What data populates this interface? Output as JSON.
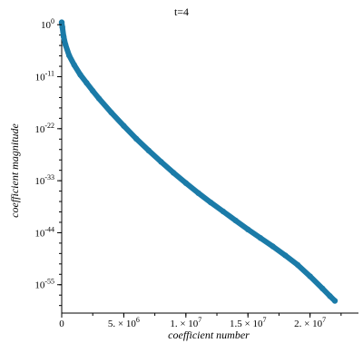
{
  "chart_data": {
    "type": "scatter",
    "title": "t=4",
    "xlabel": "coefficient number",
    "ylabel": "coefficient magnitude",
    "x_scale": "linear",
    "y_scale": "log10",
    "xlim": [
      0,
      23900000
    ],
    "ylim_log10_exponent": [
      -61,
      1
    ],
    "x_ticks": [
      {
        "value": 0,
        "label": "0",
        "mantissa": "",
        "exp": ""
      },
      {
        "value": 5000000,
        "label": "5. × 10^6",
        "mantissa": "5. × 10",
        "exp": "6"
      },
      {
        "value": 10000000,
        "label": "1. × 10^7",
        "mantissa": "1. × 10",
        "exp": "7"
      },
      {
        "value": 15000000,
        "label": "1.5 × 10^7",
        "mantissa": "1.5 × 10",
        "exp": "7"
      },
      {
        "value": 20000000,
        "label": "2. × 10^7",
        "mantissa": "2. × 10",
        "exp": "7"
      }
    ],
    "y_ticks": [
      {
        "exponent": 0,
        "label": "10^0",
        "base": "10",
        "exp": "0"
      },
      {
        "exponent": -11,
        "label": "10^-11",
        "base": "10",
        "exp": "-11"
      },
      {
        "exponent": -22,
        "label": "10^-22",
        "base": "10",
        "exp": "-22"
      },
      {
        "exponent": -33,
        "label": "10^-33",
        "base": "10",
        "exp": "-33"
      },
      {
        "exponent": -44,
        "label": "10^-44",
        "base": "10",
        "exp": "-44"
      },
      {
        "exponent": -55,
        "label": "10^-55",
        "base": "10",
        "exp": "-55"
      }
    ],
    "series": [
      {
        "color": "#1b7ba8",
        "points": [
          {
            "x": 0,
            "log10_y": 0.5
          },
          {
            "x": 50000,
            "log10_y": -0.5
          },
          {
            "x": 150000,
            "log10_y": -2.5
          },
          {
            "x": 300000,
            "log10_y": -4.2
          },
          {
            "x": 600000,
            "log10_y": -6.5
          },
          {
            "x": 1000000,
            "log10_y": -8.5
          },
          {
            "x": 1500000,
            "log10_y": -10.6
          },
          {
            "x": 2000000,
            "log10_y": -12.3
          },
          {
            "x": 2500000,
            "log10_y": -14.0
          },
          {
            "x": 3000000,
            "log10_y": -15.6
          },
          {
            "x": 4000000,
            "log10_y": -18.6
          },
          {
            "x": 5000000,
            "log10_y": -21.4
          },
          {
            "x": 6000000,
            "log10_y": -24.1
          },
          {
            "x": 7000000,
            "log10_y": -26.6
          },
          {
            "x": 8000000,
            "log10_y": -29.0
          },
          {
            "x": 9000000,
            "log10_y": -31.3
          },
          {
            "x": 10000000,
            "log10_y": -33.5
          },
          {
            "x": 11000000,
            "log10_y": -35.6
          },
          {
            "x": 12000000,
            "log10_y": -37.6
          },
          {
            "x": 13000000,
            "log10_y": -39.5
          },
          {
            "x": 14000000,
            "log10_y": -41.4
          },
          {
            "x": 15000000,
            "log10_y": -43.3
          },
          {
            "x": 16000000,
            "log10_y": -45.1
          },
          {
            "x": 17000000,
            "log10_y": -46.9
          },
          {
            "x": 18000000,
            "log10_y": -48.8
          },
          {
            "x": 19000000,
            "log10_y": -50.8
          },
          {
            "x": 20000000,
            "log10_y": -53.2
          },
          {
            "x": 21000000,
            "log10_y": -55.8
          },
          {
            "x": 21600000,
            "log10_y": -57.4
          },
          {
            "x": 22000000,
            "log10_y": -58.4
          }
        ]
      }
    ],
    "grid": false,
    "legend": "none"
  }
}
